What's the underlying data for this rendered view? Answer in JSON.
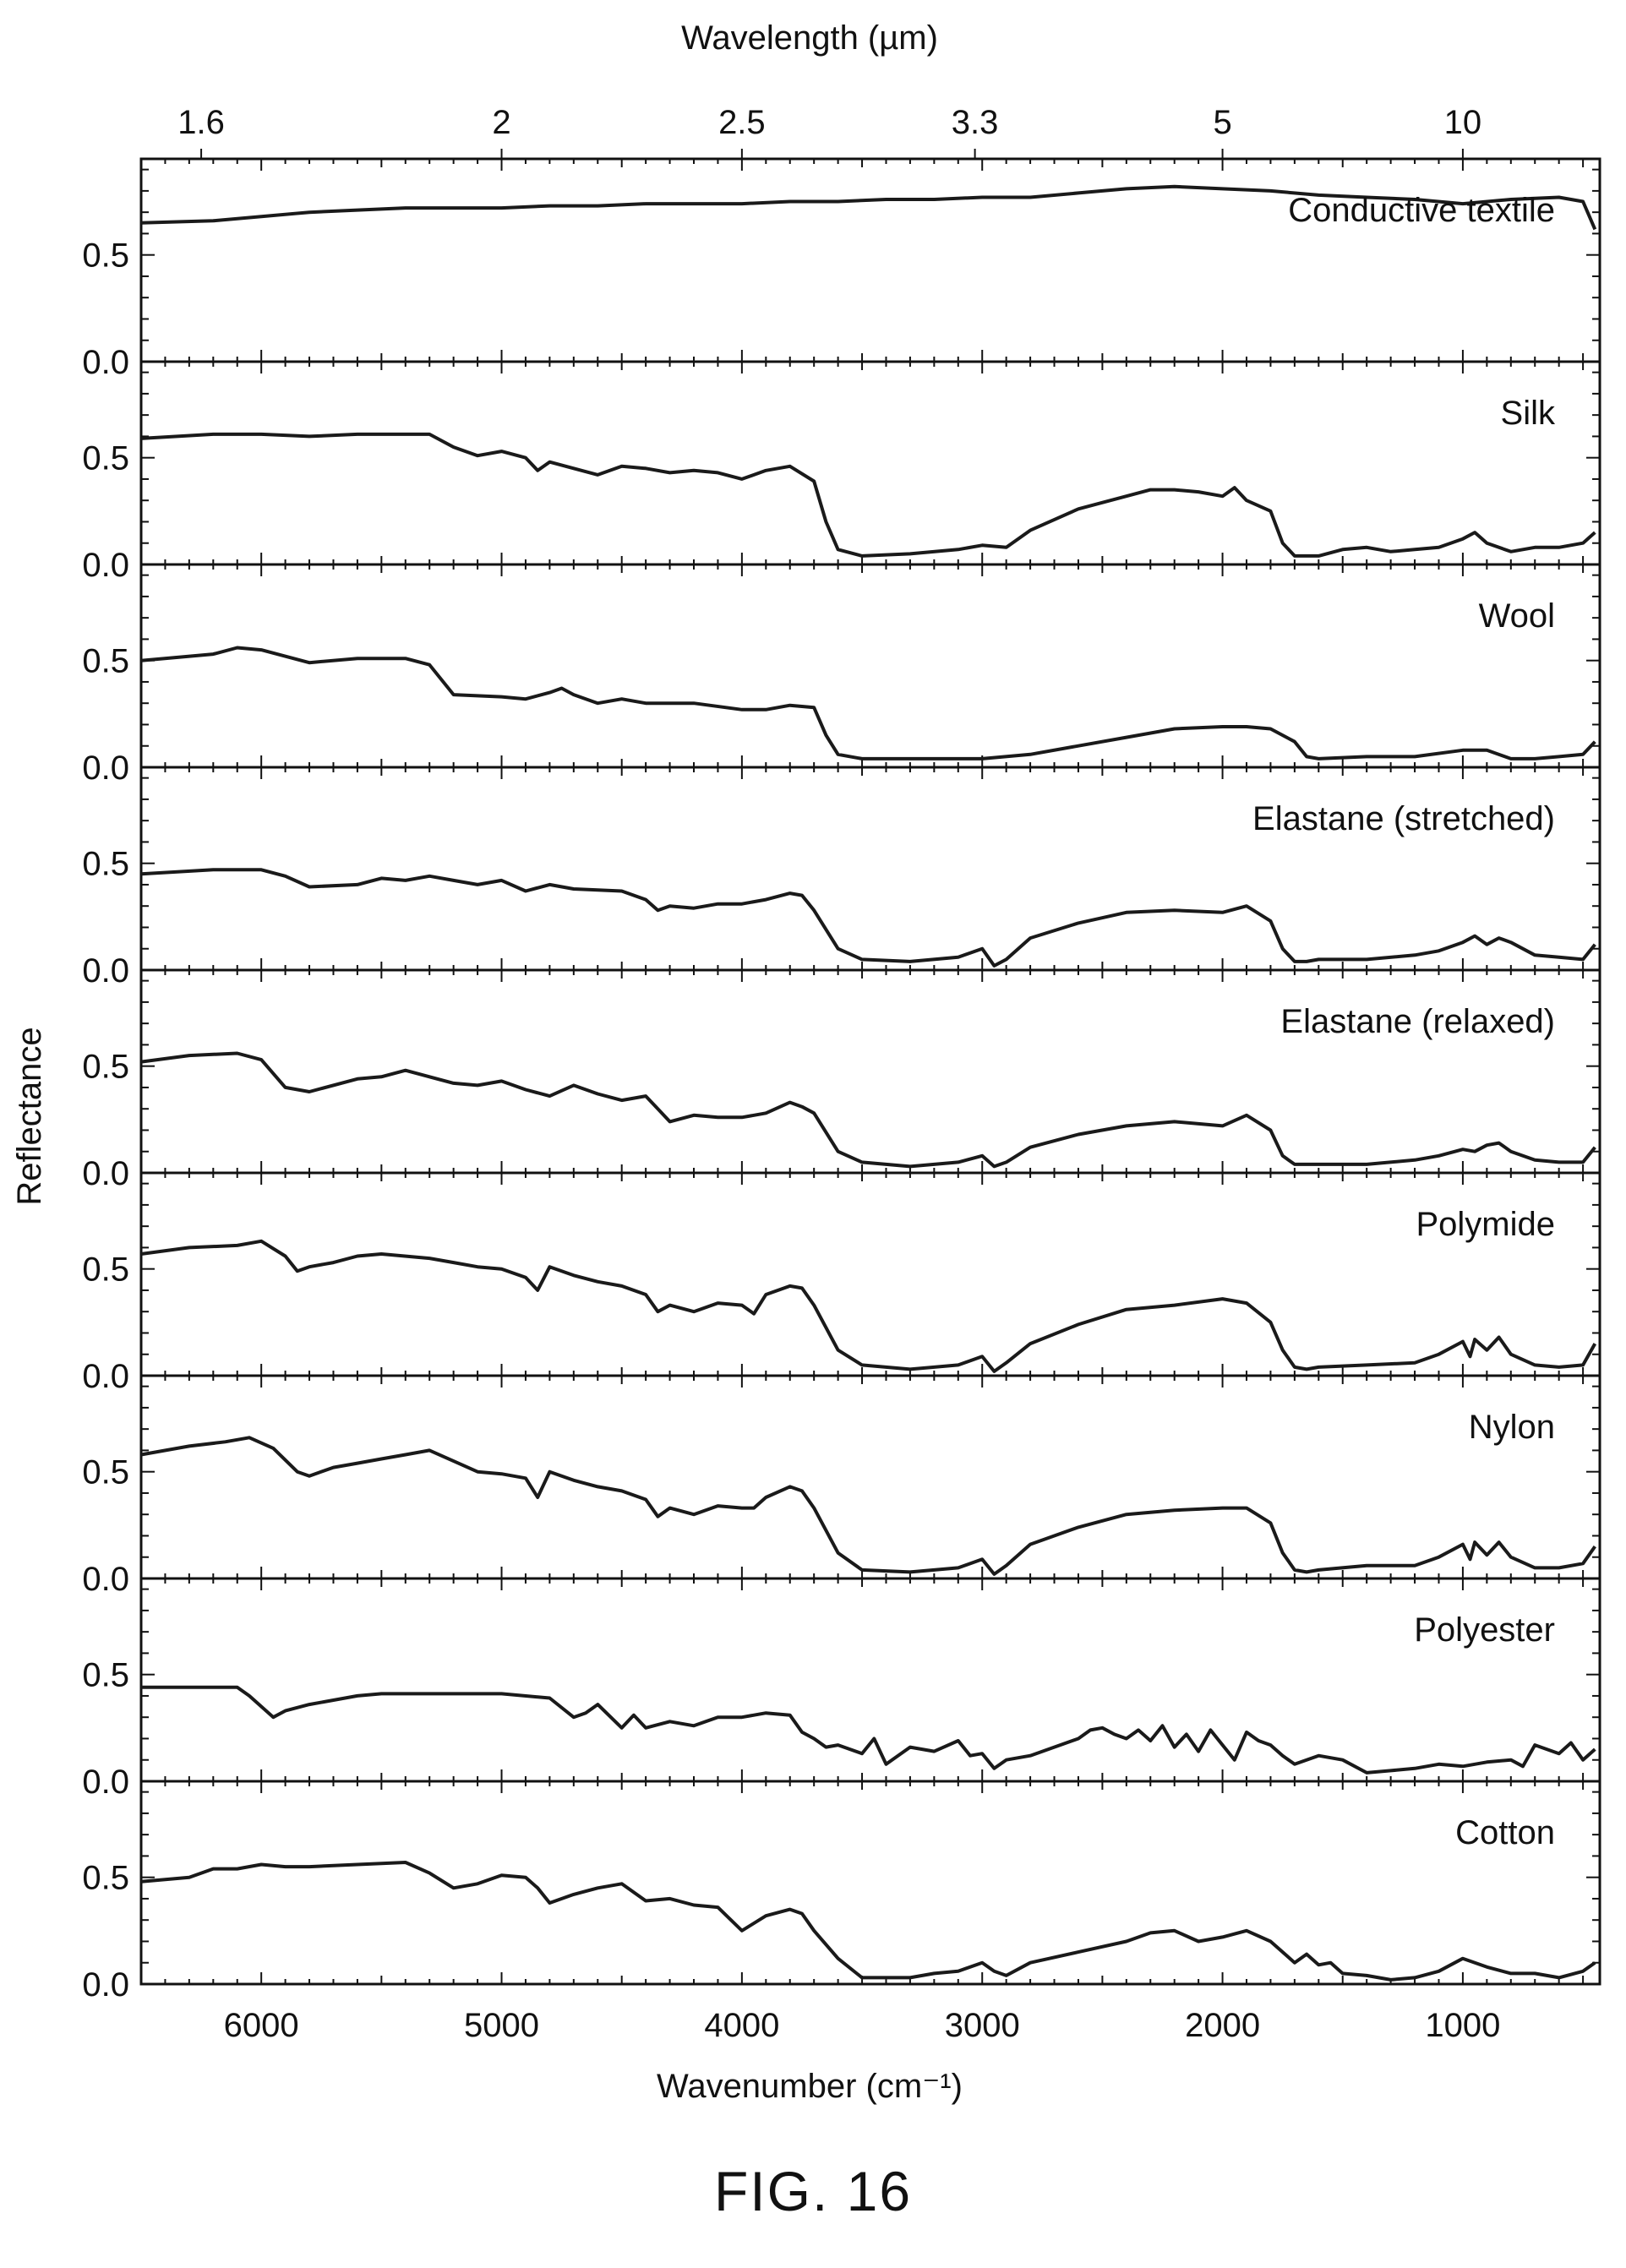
{
  "figure": {
    "caption": "FIG. 16"
  },
  "colors": {
    "line": "#1a1a1a",
    "axis": "#111111",
    "background": "#ffffff"
  },
  "chart_data": {
    "type": "line",
    "layout": "stacked-panels",
    "xlabel": "Wavenumber (cm⁻¹)",
    "x2label": "Wavelength (µm)",
    "ylabel": "Reflectance",
    "xlim": [
      6500,
      430
    ],
    "xticks": [
      6000,
      5000,
      4000,
      3000,
      2000,
      1000
    ],
    "xtick_labels": [
      "6000",
      "5000",
      "4000",
      "3000",
      "2000",
      "1000"
    ],
    "x2ticks": [
      1.6,
      2,
      2.5,
      3.3,
      5,
      10
    ],
    "x2tick_labels": [
      "1.6",
      "2",
      "2.5",
      "3.3",
      "5",
      "10"
    ],
    "ylim": [
      0,
      0.95
    ],
    "yticks": [
      0.0,
      0.5
    ],
    "ytick_labels": [
      "0.0",
      "0.5"
    ],
    "grid": false,
    "panels": [
      {
        "name": "Conductive textile",
        "x": [
          6500,
          6200,
          6000,
          5800,
          5600,
          5400,
          5200,
          5000,
          4800,
          4600,
          4400,
          4200,
          4000,
          3800,
          3600,
          3400,
          3200,
          3000,
          2800,
          2600,
          2400,
          2200,
          2000,
          1800,
          1600,
          1400,
          1200,
          1000,
          800,
          600,
          500,
          450
        ],
        "y": [
          0.65,
          0.66,
          0.68,
          0.7,
          0.71,
          0.72,
          0.72,
          0.72,
          0.73,
          0.73,
          0.74,
          0.74,
          0.74,
          0.75,
          0.75,
          0.76,
          0.76,
          0.77,
          0.77,
          0.79,
          0.81,
          0.82,
          0.81,
          0.8,
          0.78,
          0.77,
          0.76,
          0.74,
          0.76,
          0.77,
          0.75,
          0.62
        ]
      },
      {
        "name": "Silk",
        "x": [
          6500,
          6200,
          6000,
          5800,
          5600,
          5300,
          5200,
          5100,
          5000,
          4900,
          4850,
          4800,
          4700,
          4600,
          4500,
          4400,
          4300,
          4200,
          4100,
          4000,
          3900,
          3800,
          3700,
          3650,
          3600,
          3500,
          3300,
          3100,
          3000,
          2900,
          2800,
          2600,
          2400,
          2300,
          2200,
          2100,
          2000,
          1950,
          1900,
          1800,
          1750,
          1700,
          1600,
          1500,
          1400,
          1300,
          1200,
          1100,
          1000,
          950,
          900,
          800,
          700,
          600,
          500,
          450
        ],
        "y": [
          0.59,
          0.61,
          0.61,
          0.6,
          0.61,
          0.61,
          0.55,
          0.51,
          0.53,
          0.5,
          0.44,
          0.48,
          0.45,
          0.42,
          0.46,
          0.45,
          0.43,
          0.44,
          0.43,
          0.4,
          0.44,
          0.46,
          0.39,
          0.2,
          0.07,
          0.04,
          0.05,
          0.07,
          0.09,
          0.08,
          0.16,
          0.26,
          0.32,
          0.35,
          0.35,
          0.34,
          0.32,
          0.36,
          0.3,
          0.25,
          0.1,
          0.04,
          0.04,
          0.07,
          0.08,
          0.06,
          0.07,
          0.08,
          0.12,
          0.15,
          0.1,
          0.06,
          0.08,
          0.08,
          0.1,
          0.15
        ]
      },
      {
        "name": "Wool",
        "x": [
          6500,
          6200,
          6100,
          6000,
          5800,
          5600,
          5400,
          5300,
          5200,
          5000,
          4900,
          4800,
          4750,
          4700,
          4600,
          4500,
          4400,
          4300,
          4200,
          4000,
          3900,
          3800,
          3700,
          3650,
          3600,
          3500,
          3300,
          3000,
          2800,
          2600,
          2400,
          2200,
          2000,
          1900,
          1800,
          1700,
          1650,
          1600,
          1400,
          1200,
          1000,
          900,
          800,
          700,
          600,
          500,
          450
        ],
        "y": [
          0.5,
          0.53,
          0.56,
          0.55,
          0.49,
          0.51,
          0.51,
          0.48,
          0.34,
          0.33,
          0.32,
          0.35,
          0.37,
          0.34,
          0.3,
          0.32,
          0.3,
          0.3,
          0.3,
          0.27,
          0.27,
          0.29,
          0.28,
          0.15,
          0.06,
          0.04,
          0.04,
          0.04,
          0.06,
          0.1,
          0.14,
          0.18,
          0.19,
          0.19,
          0.18,
          0.12,
          0.05,
          0.04,
          0.05,
          0.05,
          0.08,
          0.08,
          0.04,
          0.04,
          0.05,
          0.06,
          0.12
        ]
      },
      {
        "name": "Elastane (stretched)",
        "x": [
          6500,
          6200,
          6000,
          5900,
          5800,
          5600,
          5500,
          5400,
          5300,
          5200,
          5100,
          5000,
          4900,
          4800,
          4700,
          4500,
          4400,
          4350,
          4300,
          4200,
          4100,
          4000,
          3900,
          3800,
          3750,
          3700,
          3600,
          3500,
          3300,
          3100,
          3000,
          2950,
          2900,
          2800,
          2600,
          2400,
          2200,
          2000,
          1900,
          1800,
          1750,
          1700,
          1650,
          1600,
          1400,
          1200,
          1100,
          1000,
          950,
          900,
          850,
          800,
          700,
          600,
          500,
          450
        ],
        "y": [
          0.45,
          0.47,
          0.47,
          0.44,
          0.39,
          0.4,
          0.43,
          0.42,
          0.44,
          0.42,
          0.4,
          0.42,
          0.37,
          0.4,
          0.38,
          0.37,
          0.33,
          0.28,
          0.3,
          0.29,
          0.31,
          0.31,
          0.33,
          0.36,
          0.35,
          0.28,
          0.1,
          0.05,
          0.04,
          0.06,
          0.1,
          0.02,
          0.05,
          0.15,
          0.22,
          0.27,
          0.28,
          0.27,
          0.3,
          0.23,
          0.1,
          0.04,
          0.04,
          0.05,
          0.05,
          0.07,
          0.09,
          0.13,
          0.16,
          0.12,
          0.15,
          0.13,
          0.07,
          0.06,
          0.05,
          0.12
        ]
      },
      {
        "name": "Elastane (relaxed)",
        "x": [
          6500,
          6300,
          6100,
          6000,
          5900,
          5800,
          5600,
          5500,
          5400,
          5300,
          5200,
          5100,
          5000,
          4900,
          4800,
          4700,
          4600,
          4500,
          4400,
          4350,
          4300,
          4200,
          4100,
          4000,
          3900,
          3800,
          3750,
          3700,
          3600,
          3500,
          3300,
          3100,
          3000,
          2950,
          2900,
          2800,
          2600,
          2400,
          2200,
          2000,
          1900,
          1800,
          1750,
          1700,
          1600,
          1400,
          1200,
          1100,
          1000,
          950,
          900,
          850,
          800,
          700,
          600,
          500,
          450
        ],
        "y": [
          0.52,
          0.55,
          0.56,
          0.53,
          0.4,
          0.38,
          0.44,
          0.45,
          0.48,
          0.45,
          0.42,
          0.41,
          0.43,
          0.39,
          0.36,
          0.41,
          0.37,
          0.34,
          0.36,
          0.3,
          0.24,
          0.27,
          0.26,
          0.26,
          0.28,
          0.33,
          0.31,
          0.28,
          0.1,
          0.05,
          0.03,
          0.05,
          0.08,
          0.03,
          0.05,
          0.12,
          0.18,
          0.22,
          0.24,
          0.22,
          0.27,
          0.2,
          0.08,
          0.04,
          0.04,
          0.04,
          0.06,
          0.08,
          0.11,
          0.1,
          0.13,
          0.14,
          0.1,
          0.06,
          0.05,
          0.05,
          0.12
        ]
      },
      {
        "name": "Polymide",
        "x": [
          6500,
          6300,
          6100,
          6000,
          5900,
          5850,
          5800,
          5700,
          5600,
          5500,
          5300,
          5200,
          5100,
          5000,
          4900,
          4850,
          4800,
          4700,
          4600,
          4500,
          4400,
          4350,
          4300,
          4200,
          4100,
          4000,
          3950,
          3900,
          3800,
          3750,
          3700,
          3600,
          3500,
          3300,
          3100,
          3000,
          2950,
          2900,
          2800,
          2600,
          2400,
          2200,
          2000,
          1900,
          1800,
          1750,
          1700,
          1650,
          1600,
          1400,
          1200,
          1100,
          1000,
          970,
          950,
          900,
          850,
          800,
          700,
          600,
          500,
          450
        ],
        "y": [
          0.57,
          0.6,
          0.61,
          0.63,
          0.56,
          0.49,
          0.51,
          0.53,
          0.56,
          0.57,
          0.55,
          0.53,
          0.51,
          0.5,
          0.46,
          0.4,
          0.51,
          0.47,
          0.44,
          0.42,
          0.38,
          0.3,
          0.33,
          0.3,
          0.34,
          0.33,
          0.29,
          0.38,
          0.42,
          0.41,
          0.33,
          0.12,
          0.05,
          0.03,
          0.05,
          0.09,
          0.02,
          0.06,
          0.15,
          0.24,
          0.31,
          0.33,
          0.36,
          0.34,
          0.25,
          0.12,
          0.04,
          0.03,
          0.04,
          0.05,
          0.06,
          0.1,
          0.16,
          0.09,
          0.17,
          0.12,
          0.18,
          0.1,
          0.05,
          0.04,
          0.05,
          0.15
        ]
      },
      {
        "name": "Nylon",
        "x": [
          6500,
          6300,
          6150,
          6050,
          5950,
          5850,
          5800,
          5700,
          5600,
          5500,
          5400,
          5300,
          5200,
          5100,
          5000,
          4900,
          4850,
          4800,
          4700,
          4600,
          4500,
          4400,
          4350,
          4300,
          4200,
          4100,
          4000,
          3950,
          3900,
          3800,
          3750,
          3700,
          3600,
          3500,
          3300,
          3100,
          3000,
          2950,
          2900,
          2800,
          2600,
          2400,
          2200,
          2000,
          1900,
          1800,
          1750,
          1700,
          1650,
          1600,
          1400,
          1200,
          1100,
          1000,
          970,
          950,
          900,
          850,
          800,
          700,
          600,
          500,
          450
        ],
        "y": [
          0.58,
          0.62,
          0.64,
          0.66,
          0.61,
          0.5,
          0.48,
          0.52,
          0.54,
          0.56,
          0.58,
          0.6,
          0.55,
          0.5,
          0.49,
          0.47,
          0.38,
          0.5,
          0.46,
          0.43,
          0.41,
          0.37,
          0.29,
          0.33,
          0.3,
          0.34,
          0.33,
          0.33,
          0.38,
          0.43,
          0.41,
          0.33,
          0.12,
          0.04,
          0.03,
          0.05,
          0.09,
          0.02,
          0.06,
          0.16,
          0.24,
          0.3,
          0.32,
          0.33,
          0.33,
          0.26,
          0.12,
          0.04,
          0.03,
          0.04,
          0.06,
          0.06,
          0.1,
          0.16,
          0.09,
          0.17,
          0.11,
          0.17,
          0.1,
          0.05,
          0.05,
          0.07,
          0.15
        ]
      },
      {
        "name": "Polyester",
        "x": [
          6500,
          6300,
          6100,
          6050,
          5950,
          5900,
          5800,
          5600,
          5500,
          5400,
          5200,
          5000,
          4800,
          4700,
          4650,
          4600,
          4500,
          4450,
          4400,
          4300,
          4200,
          4100,
          4000,
          3900,
          3800,
          3750,
          3700,
          3650,
          3600,
          3500,
          3450,
          3400,
          3300,
          3200,
          3100,
          3050,
          3000,
          2950,
          2900,
          2800,
          2700,
          2600,
          2550,
          2500,
          2450,
          2400,
          2350,
          2300,
          2250,
          2200,
          2150,
          2100,
          2050,
          2000,
          1950,
          1900,
          1850,
          1800,
          1750,
          1700,
          1600,
          1500,
          1400,
          1300,
          1200,
          1100,
          1000,
          900,
          800,
          750,
          700,
          600,
          550,
          500,
          450
        ],
        "y": [
          0.44,
          0.44,
          0.44,
          0.4,
          0.3,
          0.33,
          0.36,
          0.4,
          0.41,
          0.41,
          0.41,
          0.41,
          0.39,
          0.3,
          0.32,
          0.36,
          0.25,
          0.31,
          0.25,
          0.28,
          0.26,
          0.3,
          0.3,
          0.32,
          0.31,
          0.23,
          0.2,
          0.16,
          0.17,
          0.13,
          0.2,
          0.08,
          0.16,
          0.14,
          0.19,
          0.12,
          0.13,
          0.06,
          0.1,
          0.12,
          0.16,
          0.2,
          0.24,
          0.25,
          0.22,
          0.2,
          0.24,
          0.19,
          0.26,
          0.16,
          0.22,
          0.14,
          0.24,
          0.17,
          0.1,
          0.23,
          0.19,
          0.17,
          0.12,
          0.08,
          0.12,
          0.1,
          0.04,
          0.05,
          0.06,
          0.08,
          0.07,
          0.09,
          0.1,
          0.07,
          0.17,
          0.13,
          0.18,
          0.1,
          0.15
        ]
      },
      {
        "name": "Cotton",
        "x": [
          6500,
          6300,
          6200,
          6100,
          6000,
          5900,
          5800,
          5600,
          5400,
          5300,
          5200,
          5100,
          5000,
          4900,
          4850,
          4800,
          4700,
          4600,
          4500,
          4400,
          4300,
          4200,
          4100,
          4000,
          3900,
          3800,
          3750,
          3700,
          3600,
          3500,
          3300,
          3200,
          3100,
          3000,
          2950,
          2900,
          2800,
          2600,
          2400,
          2300,
          2200,
          2100,
          2000,
          1900,
          1800,
          1700,
          1650,
          1600,
          1550,
          1500,
          1400,
          1300,
          1200,
          1100,
          1000,
          900,
          800,
          700,
          600,
          500,
          450
        ],
        "y": [
          0.48,
          0.5,
          0.54,
          0.54,
          0.56,
          0.55,
          0.55,
          0.56,
          0.57,
          0.52,
          0.45,
          0.47,
          0.51,
          0.5,
          0.45,
          0.38,
          0.42,
          0.45,
          0.47,
          0.39,
          0.4,
          0.37,
          0.36,
          0.25,
          0.32,
          0.35,
          0.33,
          0.25,
          0.12,
          0.03,
          0.03,
          0.05,
          0.06,
          0.1,
          0.06,
          0.04,
          0.1,
          0.15,
          0.2,
          0.24,
          0.25,
          0.2,
          0.22,
          0.25,
          0.2,
          0.1,
          0.14,
          0.09,
          0.1,
          0.05,
          0.04,
          0.02,
          0.03,
          0.06,
          0.12,
          0.08,
          0.05,
          0.05,
          0.03,
          0.06,
          0.1
        ]
      }
    ]
  }
}
